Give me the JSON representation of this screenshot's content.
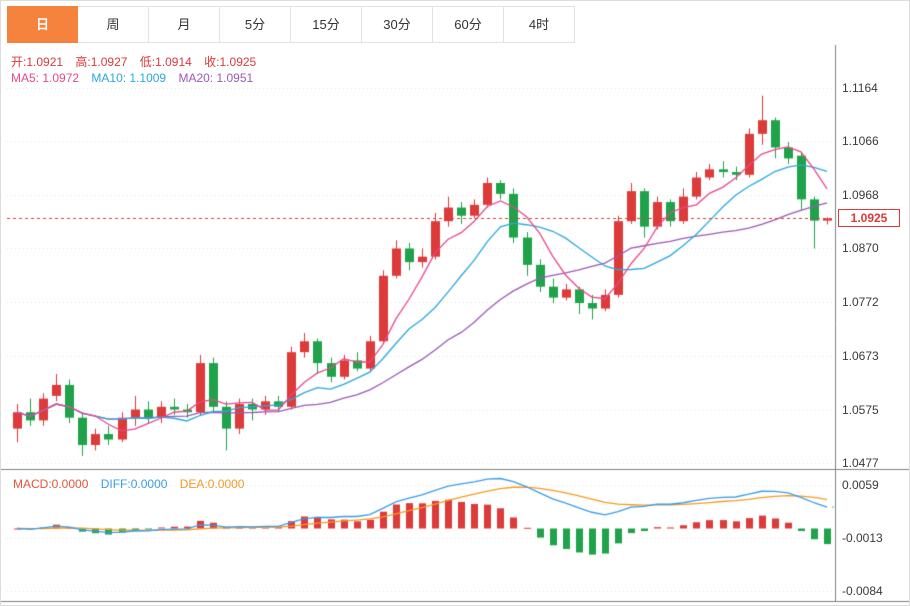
{
  "tabs": [
    {
      "label": "日",
      "active": true
    },
    {
      "label": "周",
      "active": false
    },
    {
      "label": "月",
      "active": false
    },
    {
      "label": "5分",
      "active": false
    },
    {
      "label": "15分",
      "active": false
    },
    {
      "label": "30分",
      "active": false
    },
    {
      "label": "60分",
      "active": false
    },
    {
      "label": "4时",
      "active": false
    }
  ],
  "legend_ohlc": {
    "open": "开:1.0921",
    "high": "高:1.0927",
    "low": "低:1.0914",
    "close": "收:1.0925"
  },
  "legend_ma": {
    "ma5": "MA5: 1.0972",
    "ma10": "MA10: 1.1009",
    "ma20": "MA20: 1.0951"
  },
  "legend_macd": {
    "macd": "MACD:0.0000",
    "diff": "DIFF:0.0000",
    "dea": "DEA:0.0000"
  },
  "main_axis_labels": [
    "1.1164",
    "1.1066",
    "1.0968",
    "1.0870",
    "1.0772",
    "1.0673",
    "1.0575",
    "1.0477"
  ],
  "macd_axis_labels": [
    "0.0059",
    "-0.0013",
    "-0.0084"
  ],
  "last_price_label": "1.0925",
  "chart_data": {
    "type": "candlestick",
    "panels": [
      "price",
      "macd"
    ],
    "timeframe_selected": "日",
    "last_price": 1.0925,
    "ohlc_last": {
      "open": 1.0921,
      "high": 1.0927,
      "low": 1.0914,
      "close": 1.0925
    },
    "ma_periods": [
      5,
      10,
      20
    ],
    "ma_values": {
      "MA5": 1.0972,
      "MA10": 1.1009,
      "MA20": 1.0951
    },
    "price_gridlines": [
      1.1164,
      1.1066,
      1.0968,
      1.087,
      1.0772,
      1.0673,
      1.0575,
      1.0477
    ],
    "ylim": [
      1.0469,
      1.1242
    ],
    "grid": true,
    "candles": [
      [
        1.054,
        1.0585,
        1.0515,
        1.057
      ],
      [
        1.057,
        1.0595,
        1.0545,
        1.0555
      ],
      [
        1.0555,
        1.0605,
        1.0545,
        1.0595
      ],
      [
        1.06,
        1.064,
        1.059,
        1.062
      ],
      [
        1.062,
        1.063,
        1.055,
        1.056
      ],
      [
        1.056,
        1.057,
        1.049,
        1.051
      ],
      [
        1.051,
        1.054,
        1.05,
        1.053
      ],
      [
        1.053,
        1.0545,
        1.051,
        1.052
      ],
      [
        1.052,
        1.057,
        1.0515,
        1.056
      ],
      [
        1.056,
        1.06,
        1.0545,
        1.0575
      ],
      [
        1.0575,
        1.059,
        1.055,
        1.056
      ],
      [
        1.056,
        1.059,
        1.055,
        1.058
      ],
      [
        1.058,
        1.0595,
        1.0565,
        1.0575
      ],
      [
        1.0575,
        1.0585,
        1.056,
        1.057
      ],
      [
        1.057,
        1.0675,
        1.0565,
        1.066
      ],
      [
        1.066,
        1.067,
        1.057,
        1.058
      ],
      [
        1.058,
        1.059,
        1.05,
        1.054
      ],
      [
        1.054,
        1.0595,
        1.053,
        1.0585
      ],
      [
        1.0585,
        1.0595,
        1.0555,
        1.0575
      ],
      [
        1.0575,
        1.06,
        1.0565,
        1.059
      ],
      [
        1.059,
        1.06,
        1.057,
        1.058
      ],
      [
        1.058,
        1.069,
        1.0575,
        1.068
      ],
      [
        1.068,
        1.0715,
        1.067,
        1.07
      ],
      [
        1.07,
        1.0705,
        1.064,
        1.066
      ],
      [
        1.066,
        1.067,
        1.0625,
        1.0635
      ],
      [
        1.0635,
        1.0675,
        1.063,
        1.0665
      ],
      [
        1.0665,
        1.068,
        1.0645,
        1.065
      ],
      [
        1.065,
        1.071,
        1.0645,
        1.07
      ],
      [
        1.07,
        1.083,
        1.0695,
        1.082
      ],
      [
        1.082,
        1.0885,
        1.0815,
        1.087
      ],
      [
        1.087,
        1.088,
        1.083,
        1.0845
      ],
      [
        1.0845,
        1.087,
        1.0835,
        1.0855
      ],
      [
        1.0855,
        1.0935,
        1.085,
        1.092
      ],
      [
        1.092,
        1.0965,
        1.091,
        1.0945
      ],
      [
        1.0945,
        1.0955,
        1.0915,
        1.093
      ],
      [
        1.093,
        1.096,
        1.0925,
        1.095
      ],
      [
        1.095,
        1.1,
        1.0945,
        1.099
      ],
      [
        1.099,
        1.0995,
        1.096,
        1.097
      ],
      [
        1.097,
        1.098,
        1.088,
        1.089
      ],
      [
        1.089,
        1.09,
        1.082,
        1.084
      ],
      [
        1.084,
        1.085,
        1.079,
        1.08
      ],
      [
        1.08,
        1.0815,
        1.077,
        1.078
      ],
      [
        1.078,
        1.0805,
        1.0775,
        1.0795
      ],
      [
        1.0795,
        1.08,
        1.075,
        1.077
      ],
      [
        1.077,
        1.0785,
        1.074,
        1.076
      ],
      [
        1.076,
        1.0795,
        1.0755,
        1.0785
      ],
      [
        1.0785,
        1.093,
        1.078,
        1.092
      ],
      [
        1.092,
        1.099,
        1.0915,
        1.0975
      ],
      [
        1.0975,
        1.098,
        1.089,
        1.091
      ],
      [
        1.091,
        1.0965,
        1.0905,
        1.0955
      ],
      [
        1.0955,
        1.096,
        1.091,
        1.092
      ],
      [
        1.092,
        1.098,
        1.0915,
        1.0965
      ],
      [
        1.0965,
        1.101,
        1.096,
        1.1
      ],
      [
        1.1,
        1.1025,
        1.0995,
        1.1015
      ],
      [
        1.1015,
        1.103,
        1.1,
        1.101
      ],
      [
        1.101,
        1.102,
        1.0995,
        1.1005
      ],
      [
        1.1005,
        1.109,
        1.1,
        1.108
      ],
      [
        1.108,
        1.115,
        1.106,
        1.1105
      ],
      [
        1.1105,
        1.111,
        1.1035,
        1.1055
      ],
      [
        1.1055,
        1.1065,
        1.1025,
        1.1035
      ],
      [
        1.104,
        1.1045,
        1.094,
        1.096
      ],
      [
        1.096,
        1.0965,
        1.087,
        1.0921
      ],
      [
        1.0921,
        1.0927,
        1.0914,
        1.0925
      ]
    ],
    "macd": {
      "params": [
        12,
        26,
        9
      ],
      "gridlines": [
        0.0059,
        -0.0013,
        -0.0084
      ],
      "legend_values": {
        "MACD": 0.0,
        "DIFF": 0.0,
        "DEA": 0.0
      }
    },
    "colors": {
      "up": "#dd3a3a",
      "down": "#1fa24a",
      "ma5": "#e8488c",
      "ma10": "#2aa8dc",
      "ma20": "#9b59b6",
      "diff": "#3a9de8",
      "dea": "#f59a23",
      "price_line": "#d93a3a",
      "grid": "#e5e5e5",
      "separator": "#808080",
      "teal_dash": "#39b7c9",
      "active_tab": "#f5823d"
    }
  }
}
